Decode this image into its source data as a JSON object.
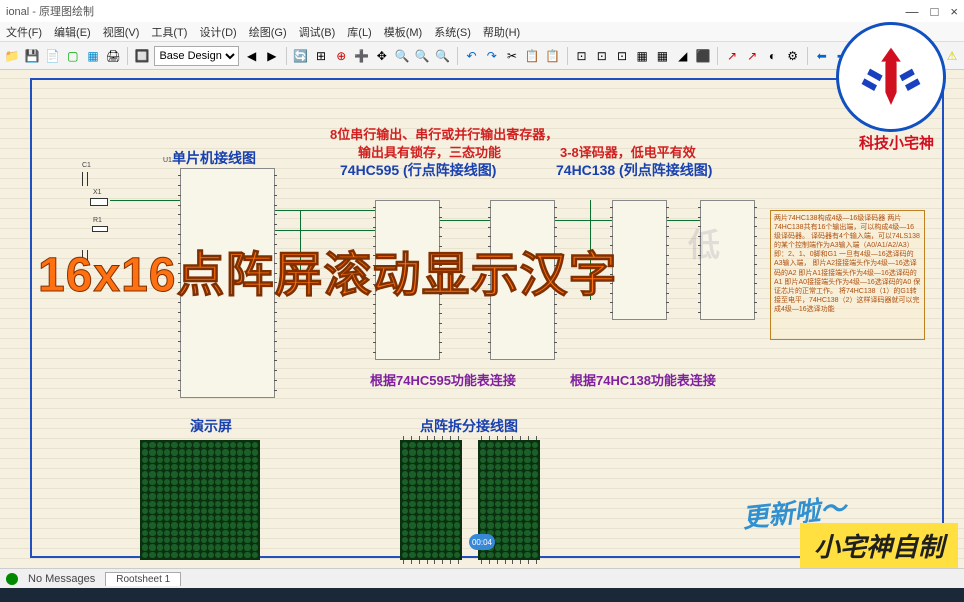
{
  "window": {
    "title_suffix": "ional - 原理图绘制",
    "min": "—",
    "max": "□",
    "close": "×"
  },
  "menu": {
    "items": [
      "文件(F)",
      "编辑(E)",
      "视图(V)",
      "工具(T)",
      "设计(D)",
      "绘图(G)",
      "调试(B)",
      "库(L)",
      "模板(M)",
      "系统(S)",
      "帮助(H)"
    ]
  },
  "toolbar": {
    "dropdown": "Base Design",
    "icons": [
      "📁",
      "💾",
      "📄",
      "🖨",
      "🔍",
      "↶",
      "↷",
      "✂",
      "📋",
      "🔎",
      "⊞",
      "⊕",
      "➕",
      "↔",
      "🔄",
      "🔍",
      "🔍",
      "✂",
      "📋",
      "📋",
      "⊡",
      "⊡",
      "⊡",
      "▦",
      "▦",
      "◢",
      "⬛",
      "↗",
      "↗",
      "◐",
      "⚙",
      "⬅",
      "➡",
      "🔵",
      "🔴",
      "✖",
      "➕",
      "🔺"
    ]
  },
  "schematic": {
    "mcu_label": "单片机接线图",
    "red_line1": "8位串行输出、串行或并行输出寄存器，",
    "red_line2": "输出具有锁存，三态功能",
    "red_line3": "3-8译码器，低电平有效",
    "blue_595": "74HC595 (行点阵接线图)",
    "blue_138": "74HC138 (列点阵接线图)",
    "purple_595": "根据74HC595功能表连接",
    "purple_138": "根据74HC138功能表连接",
    "demo_screen": "演示屏",
    "split_wiring": "点阵拆分接线图",
    "overlay": "16x16点阵屏滚动显示汉字",
    "comp_c1": "C1",
    "comp_x1": "X1",
    "comp_r1": "R1",
    "comp_u1": "U1",
    "note_text": "两片74HC138构成4级—16级译码器\n两片74HC138共有16个输出端，可以构成4级—16级译码器。\n译码器有4个输入端，可以74LS138的某个控制端作为A3输入端（A0/A1/A2/A3）即：2、1、0脚和G1\n一旦有4级—16选译码的A3输入端，\n即片A2接接端头作为4级—16选译码的A2\n即片A1接接端头作为4级—16选译码的A1\n即片A0接接端头作为4级—16选译码的A0\n保证芯片的正常工作。\n将74HC138（1）的G1转接至电平，74HC138（2）这样译码器就可以完成4级—16选译功能",
    "big_char": "低"
  },
  "logo": {
    "caption": "科技小宅神"
  },
  "overlays": {
    "update": "更新啦～",
    "author": "小宅神自制"
  },
  "status": {
    "msg": "No Messages",
    "sheet": "Rootsheet 1",
    "play_time": "00:04"
  },
  "colors": {
    "accent_orange": "#ff7010",
    "red": "#d02020",
    "blue": "#1840b0",
    "purple": "#8020a0",
    "led_bg": "#0b3010",
    "led_dot": "#1a6028",
    "canvas_bg": "#f5f0e0"
  }
}
